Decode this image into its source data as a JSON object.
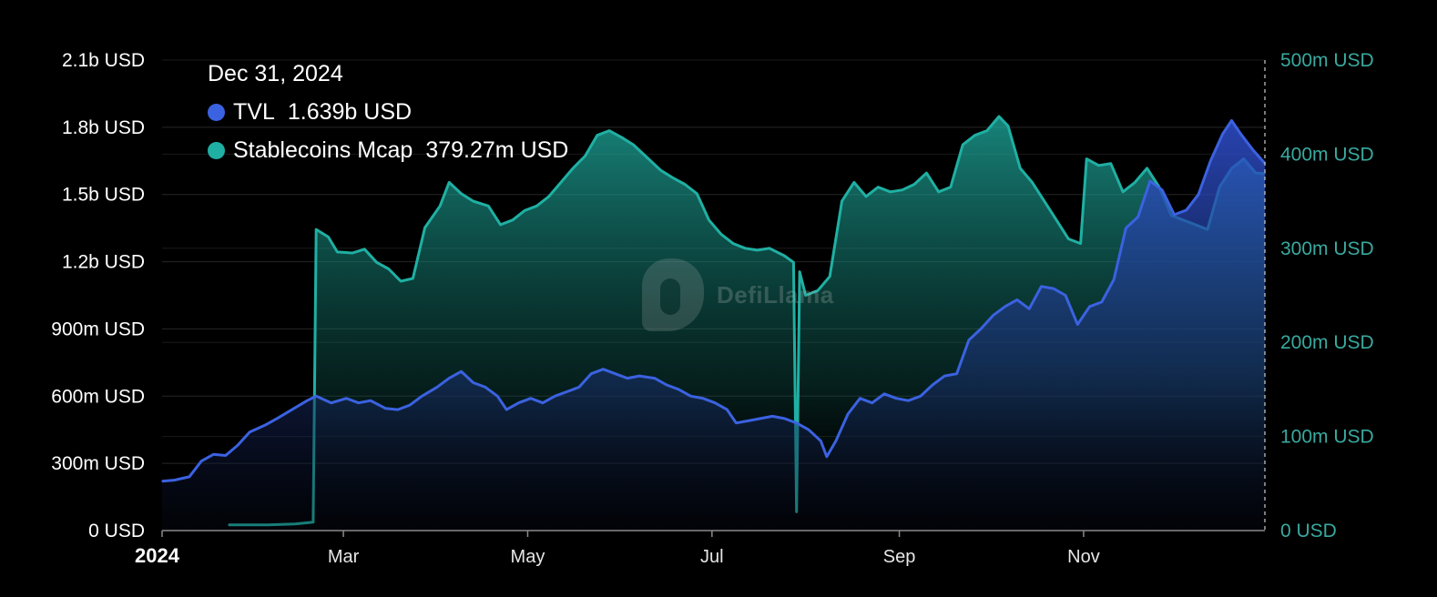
{
  "colors": {
    "background": "#000000",
    "tvl": "#3b62e0",
    "stablecoins": "#1fb0a3",
    "grid": "#222222",
    "right_axis_text": "#3aa99f"
  },
  "tooltip": {
    "date": "Dec 31, 2024",
    "items": [
      {
        "label": "TVL",
        "value": "1.639b USD",
        "color": "#3b62e0"
      },
      {
        "label": "Stablecoins Mcap",
        "value": "379.27m USD",
        "color": "#1fb0a3"
      }
    ]
  },
  "watermark": {
    "text": "DefiLlama"
  },
  "chart_data": {
    "type": "area",
    "x_start": "2024-01-01",
    "x_end": "2024-12-31",
    "x_ticks": [
      {
        "label": "2024",
        "date": "2024-01-01",
        "bold": true
      },
      {
        "label": "Mar",
        "date": "2024-03-01",
        "bold": false
      },
      {
        "label": "May",
        "date": "2024-05-01",
        "bold": false
      },
      {
        "label": "Jul",
        "date": "2024-07-01",
        "bold": false
      },
      {
        "label": "Sep",
        "date": "2024-09-01",
        "bold": false
      },
      {
        "label": "Nov",
        "date": "2024-11-01",
        "bold": false
      }
    ],
    "y_left": {
      "ylim": [
        0,
        2100000000
      ],
      "ticks": [
        {
          "value": 0,
          "label": "0 USD"
        },
        {
          "value": 300000000,
          "label": "300m USD"
        },
        {
          "value": 600000000,
          "label": "600m USD"
        },
        {
          "value": 900000000,
          "label": "900m USD"
        },
        {
          "value": 1200000000,
          "label": "1.2b USD"
        },
        {
          "value": 1500000000,
          "label": "1.5b USD"
        },
        {
          "value": 1800000000,
          "label": "1.8b USD"
        },
        {
          "value": 2100000000,
          "label": "2.1b USD"
        }
      ]
    },
    "y_right": {
      "ylim": [
        0,
        500000000
      ],
      "ticks": [
        {
          "value": 0,
          "label": "0 USD"
        },
        {
          "value": 100000000,
          "label": "100m USD"
        },
        {
          "value": 200000000,
          "label": "200m USD"
        },
        {
          "value": 300000000,
          "label": "300m USD"
        },
        {
          "value": 400000000,
          "label": "400m USD"
        },
        {
          "value": 500000000,
          "label": "500m USD"
        }
      ]
    },
    "series": [
      {
        "name": "TVL",
        "axis": "left",
        "color": "#3b62e0",
        "points": [
          [
            "2024-01-01",
            220000000
          ],
          [
            "2024-01-05",
            225000000
          ],
          [
            "2024-01-10",
            240000000
          ],
          [
            "2024-01-14",
            310000000
          ],
          [
            "2024-01-18",
            340000000
          ],
          [
            "2024-01-22",
            335000000
          ],
          [
            "2024-01-26",
            380000000
          ],
          [
            "2024-01-30",
            440000000
          ],
          [
            "2024-02-04",
            470000000
          ],
          [
            "2024-02-08",
            500000000
          ],
          [
            "2024-02-13",
            540000000
          ],
          [
            "2024-02-18",
            580000000
          ],
          [
            "2024-02-21",
            600000000
          ],
          [
            "2024-02-26",
            570000000
          ],
          [
            "2024-03-02",
            590000000
          ],
          [
            "2024-03-06",
            570000000
          ],
          [
            "2024-03-10",
            580000000
          ],
          [
            "2024-03-15",
            545000000
          ],
          [
            "2024-03-19",
            540000000
          ],
          [
            "2024-03-23",
            560000000
          ],
          [
            "2024-03-27",
            600000000
          ],
          [
            "2024-04-01",
            640000000
          ],
          [
            "2024-04-05",
            680000000
          ],
          [
            "2024-04-09",
            710000000
          ],
          [
            "2024-04-13",
            660000000
          ],
          [
            "2024-04-17",
            640000000
          ],
          [
            "2024-04-21",
            600000000
          ],
          [
            "2024-04-24",
            540000000
          ],
          [
            "2024-04-28",
            570000000
          ],
          [
            "2024-05-02",
            590000000
          ],
          [
            "2024-05-06",
            570000000
          ],
          [
            "2024-05-10",
            600000000
          ],
          [
            "2024-05-14",
            620000000
          ],
          [
            "2024-05-18",
            640000000
          ],
          [
            "2024-05-22",
            700000000
          ],
          [
            "2024-05-26",
            720000000
          ],
          [
            "2024-05-30",
            700000000
          ],
          [
            "2024-06-03",
            680000000
          ],
          [
            "2024-06-07",
            690000000
          ],
          [
            "2024-06-12",
            680000000
          ],
          [
            "2024-06-16",
            650000000
          ],
          [
            "2024-06-20",
            630000000
          ],
          [
            "2024-06-24",
            600000000
          ],
          [
            "2024-06-28",
            590000000
          ],
          [
            "2024-07-02",
            570000000
          ],
          [
            "2024-07-06",
            540000000
          ],
          [
            "2024-07-09",
            480000000
          ],
          [
            "2024-07-13",
            490000000
          ],
          [
            "2024-07-17",
            500000000
          ],
          [
            "2024-07-21",
            510000000
          ],
          [
            "2024-07-25",
            500000000
          ],
          [
            "2024-07-29",
            480000000
          ],
          [
            "2024-08-02",
            450000000
          ],
          [
            "2024-08-06",
            400000000
          ],
          [
            "2024-08-08",
            330000000
          ],
          [
            "2024-08-11",
            400000000
          ],
          [
            "2024-08-15",
            520000000
          ],
          [
            "2024-08-19",
            590000000
          ],
          [
            "2024-08-23",
            570000000
          ],
          [
            "2024-08-27",
            610000000
          ],
          [
            "2024-08-31",
            590000000
          ],
          [
            "2024-09-04",
            580000000
          ],
          [
            "2024-09-08",
            600000000
          ],
          [
            "2024-09-12",
            650000000
          ],
          [
            "2024-09-16",
            690000000
          ],
          [
            "2024-09-20",
            700000000
          ],
          [
            "2024-09-24",
            850000000
          ],
          [
            "2024-09-28",
            900000000
          ],
          [
            "2024-10-02",
            960000000
          ],
          [
            "2024-10-06",
            1000000000
          ],
          [
            "2024-10-10",
            1030000000
          ],
          [
            "2024-10-14",
            990000000
          ],
          [
            "2024-10-18",
            1090000000
          ],
          [
            "2024-10-22",
            1080000000
          ],
          [
            "2024-10-26",
            1050000000
          ],
          [
            "2024-10-30",
            920000000
          ],
          [
            "2024-11-03",
            1000000000
          ],
          [
            "2024-11-07",
            1020000000
          ],
          [
            "2024-11-11",
            1120000000
          ],
          [
            "2024-11-15",
            1350000000
          ],
          [
            "2024-11-19",
            1400000000
          ],
          [
            "2024-11-23",
            1560000000
          ],
          [
            "2024-11-27",
            1520000000
          ],
          [
            "2024-12-01",
            1410000000
          ],
          [
            "2024-12-05",
            1430000000
          ],
          [
            "2024-12-09",
            1500000000
          ],
          [
            "2024-12-13",
            1650000000
          ],
          [
            "2024-12-17",
            1770000000
          ],
          [
            "2024-12-20",
            1830000000
          ],
          [
            "2024-12-23",
            1770000000
          ],
          [
            "2024-12-27",
            1700000000
          ],
          [
            "2024-12-31",
            1639000000
          ]
        ]
      },
      {
        "name": "Stablecoins Mcap",
        "axis": "right",
        "color": "#1fb0a3",
        "points": [
          [
            "2024-01-23",
            6000000
          ],
          [
            "2024-02-05",
            6000000
          ],
          [
            "2024-02-14",
            7000000
          ],
          [
            "2024-02-20",
            9000000
          ],
          [
            "2024-02-21",
            320000000
          ],
          [
            "2024-02-25",
            312000000
          ],
          [
            "2024-02-28",
            296000000
          ],
          [
            "2024-03-04",
            295000000
          ],
          [
            "2024-03-08",
            299000000
          ],
          [
            "2024-03-12",
            285000000
          ],
          [
            "2024-03-16",
            278000000
          ],
          [
            "2024-03-20",
            265000000
          ],
          [
            "2024-03-24",
            268000000
          ],
          [
            "2024-03-28",
            322000000
          ],
          [
            "2024-04-02",
            345000000
          ],
          [
            "2024-04-05",
            370000000
          ],
          [
            "2024-04-09",
            358000000
          ],
          [
            "2024-04-13",
            350000000
          ],
          [
            "2024-04-18",
            345000000
          ],
          [
            "2024-04-22",
            325000000
          ],
          [
            "2024-04-26",
            330000000
          ],
          [
            "2024-04-30",
            340000000
          ],
          [
            "2024-05-04",
            345000000
          ],
          [
            "2024-05-08",
            355000000
          ],
          [
            "2024-05-12",
            370000000
          ],
          [
            "2024-05-16",
            385000000
          ],
          [
            "2024-05-20",
            398000000
          ],
          [
            "2024-05-24",
            420000000
          ],
          [
            "2024-05-28",
            425000000
          ],
          [
            "2024-06-01",
            418000000
          ],
          [
            "2024-06-05",
            410000000
          ],
          [
            "2024-06-10",
            395000000
          ],
          [
            "2024-06-14",
            383000000
          ],
          [
            "2024-06-18",
            375000000
          ],
          [
            "2024-06-22",
            368000000
          ],
          [
            "2024-06-26",
            358000000
          ],
          [
            "2024-06-30",
            330000000
          ],
          [
            "2024-07-04",
            315000000
          ],
          [
            "2024-07-08",
            305000000
          ],
          [
            "2024-07-12",
            300000000
          ],
          [
            "2024-07-16",
            298000000
          ],
          [
            "2024-07-20",
            300000000
          ],
          [
            "2024-07-25",
            292000000
          ],
          [
            "2024-07-28",
            285000000
          ],
          [
            "2024-07-29",
            20000000
          ],
          [
            "2024-07-30",
            275000000
          ],
          [
            "2024-08-01",
            250000000
          ],
          [
            "2024-08-05",
            255000000
          ],
          [
            "2024-08-09",
            270000000
          ],
          [
            "2024-08-13",
            350000000
          ],
          [
            "2024-08-17",
            370000000
          ],
          [
            "2024-08-21",
            355000000
          ],
          [
            "2024-08-25",
            365000000
          ],
          [
            "2024-08-29",
            360000000
          ],
          [
            "2024-09-02",
            362000000
          ],
          [
            "2024-09-06",
            368000000
          ],
          [
            "2024-09-10",
            380000000
          ],
          [
            "2024-09-14",
            360000000
          ],
          [
            "2024-09-18",
            365000000
          ],
          [
            "2024-09-22",
            410000000
          ],
          [
            "2024-09-26",
            420000000
          ],
          [
            "2024-09-30",
            425000000
          ],
          [
            "2024-10-04",
            440000000
          ],
          [
            "2024-10-07",
            430000000
          ],
          [
            "2024-10-11",
            385000000
          ],
          [
            "2024-10-15",
            370000000
          ],
          [
            "2024-10-19",
            350000000
          ],
          [
            "2024-10-23",
            330000000
          ],
          [
            "2024-10-27",
            310000000
          ],
          [
            "2024-10-31",
            305000000
          ],
          [
            "2024-11-02",
            395000000
          ],
          [
            "2024-11-06",
            388000000
          ],
          [
            "2024-11-10",
            390000000
          ],
          [
            "2024-11-14",
            360000000
          ],
          [
            "2024-11-18",
            370000000
          ],
          [
            "2024-11-22",
            385000000
          ],
          [
            "2024-11-26",
            365000000
          ],
          [
            "2024-11-30",
            335000000
          ],
          [
            "2024-12-04",
            330000000
          ],
          [
            "2024-12-08",
            325000000
          ],
          [
            "2024-12-12",
            320000000
          ],
          [
            "2024-12-16",
            365000000
          ],
          [
            "2024-12-20",
            385000000
          ],
          [
            "2024-12-24",
            395000000
          ],
          [
            "2024-12-28",
            380000000
          ],
          [
            "2024-12-31",
            379270000
          ]
        ]
      }
    ]
  }
}
